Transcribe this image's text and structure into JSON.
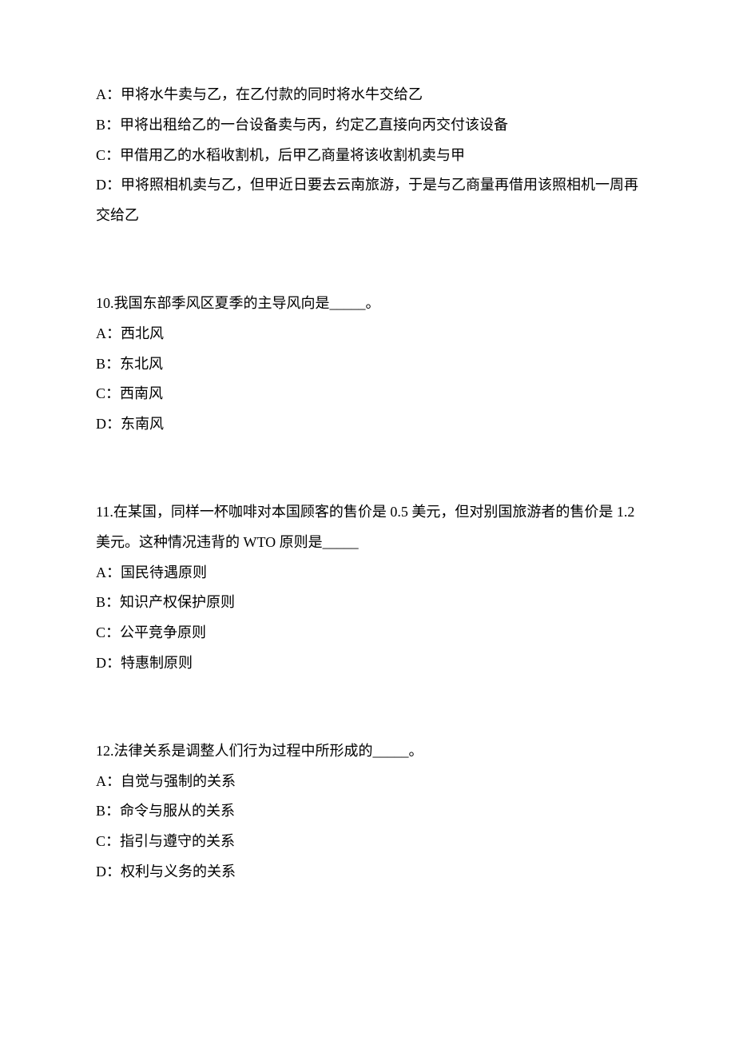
{
  "q9": {
    "options": [
      "A：甲将水牛卖与乙，在乙付款的同时将水牛交给乙",
      "B：甲将出租给乙的一台设备卖与丙，约定乙直接向丙交付该设备",
      "C：甲借用乙的水稻收割机，后甲乙商量将该收割机卖与甲",
      "D：甲将照相机卖与乙，但甲近日要去云南旅游，于是与乙商量再借用该照相机一周再交给乙"
    ]
  },
  "q10": {
    "text": "10.我国东部季风区夏季的主导风向是_____。",
    "options": [
      "A：西北风",
      "B：东北风",
      "C：西南风",
      "D：东南风"
    ]
  },
  "q11": {
    "text": "11.在某国，同样一杯咖啡对本国顾客的售价是 0.5 美元，但对别国旅游者的售价是 1.2 美元。这种情况违背的 WTO 原则是_____",
    "options": [
      "A：国民待遇原则",
      "B：知识产权保护原则",
      "C：公平竞争原则",
      "D：特惠制原则"
    ]
  },
  "q12": {
    "text": "12.法律关系是调整人们行为过程中所形成的_____。",
    "options": [
      "A：自觉与强制的关系",
      "B：命令与服从的关系",
      "C：指引与遵守的关系",
      "D：权利与义务的关系"
    ]
  }
}
